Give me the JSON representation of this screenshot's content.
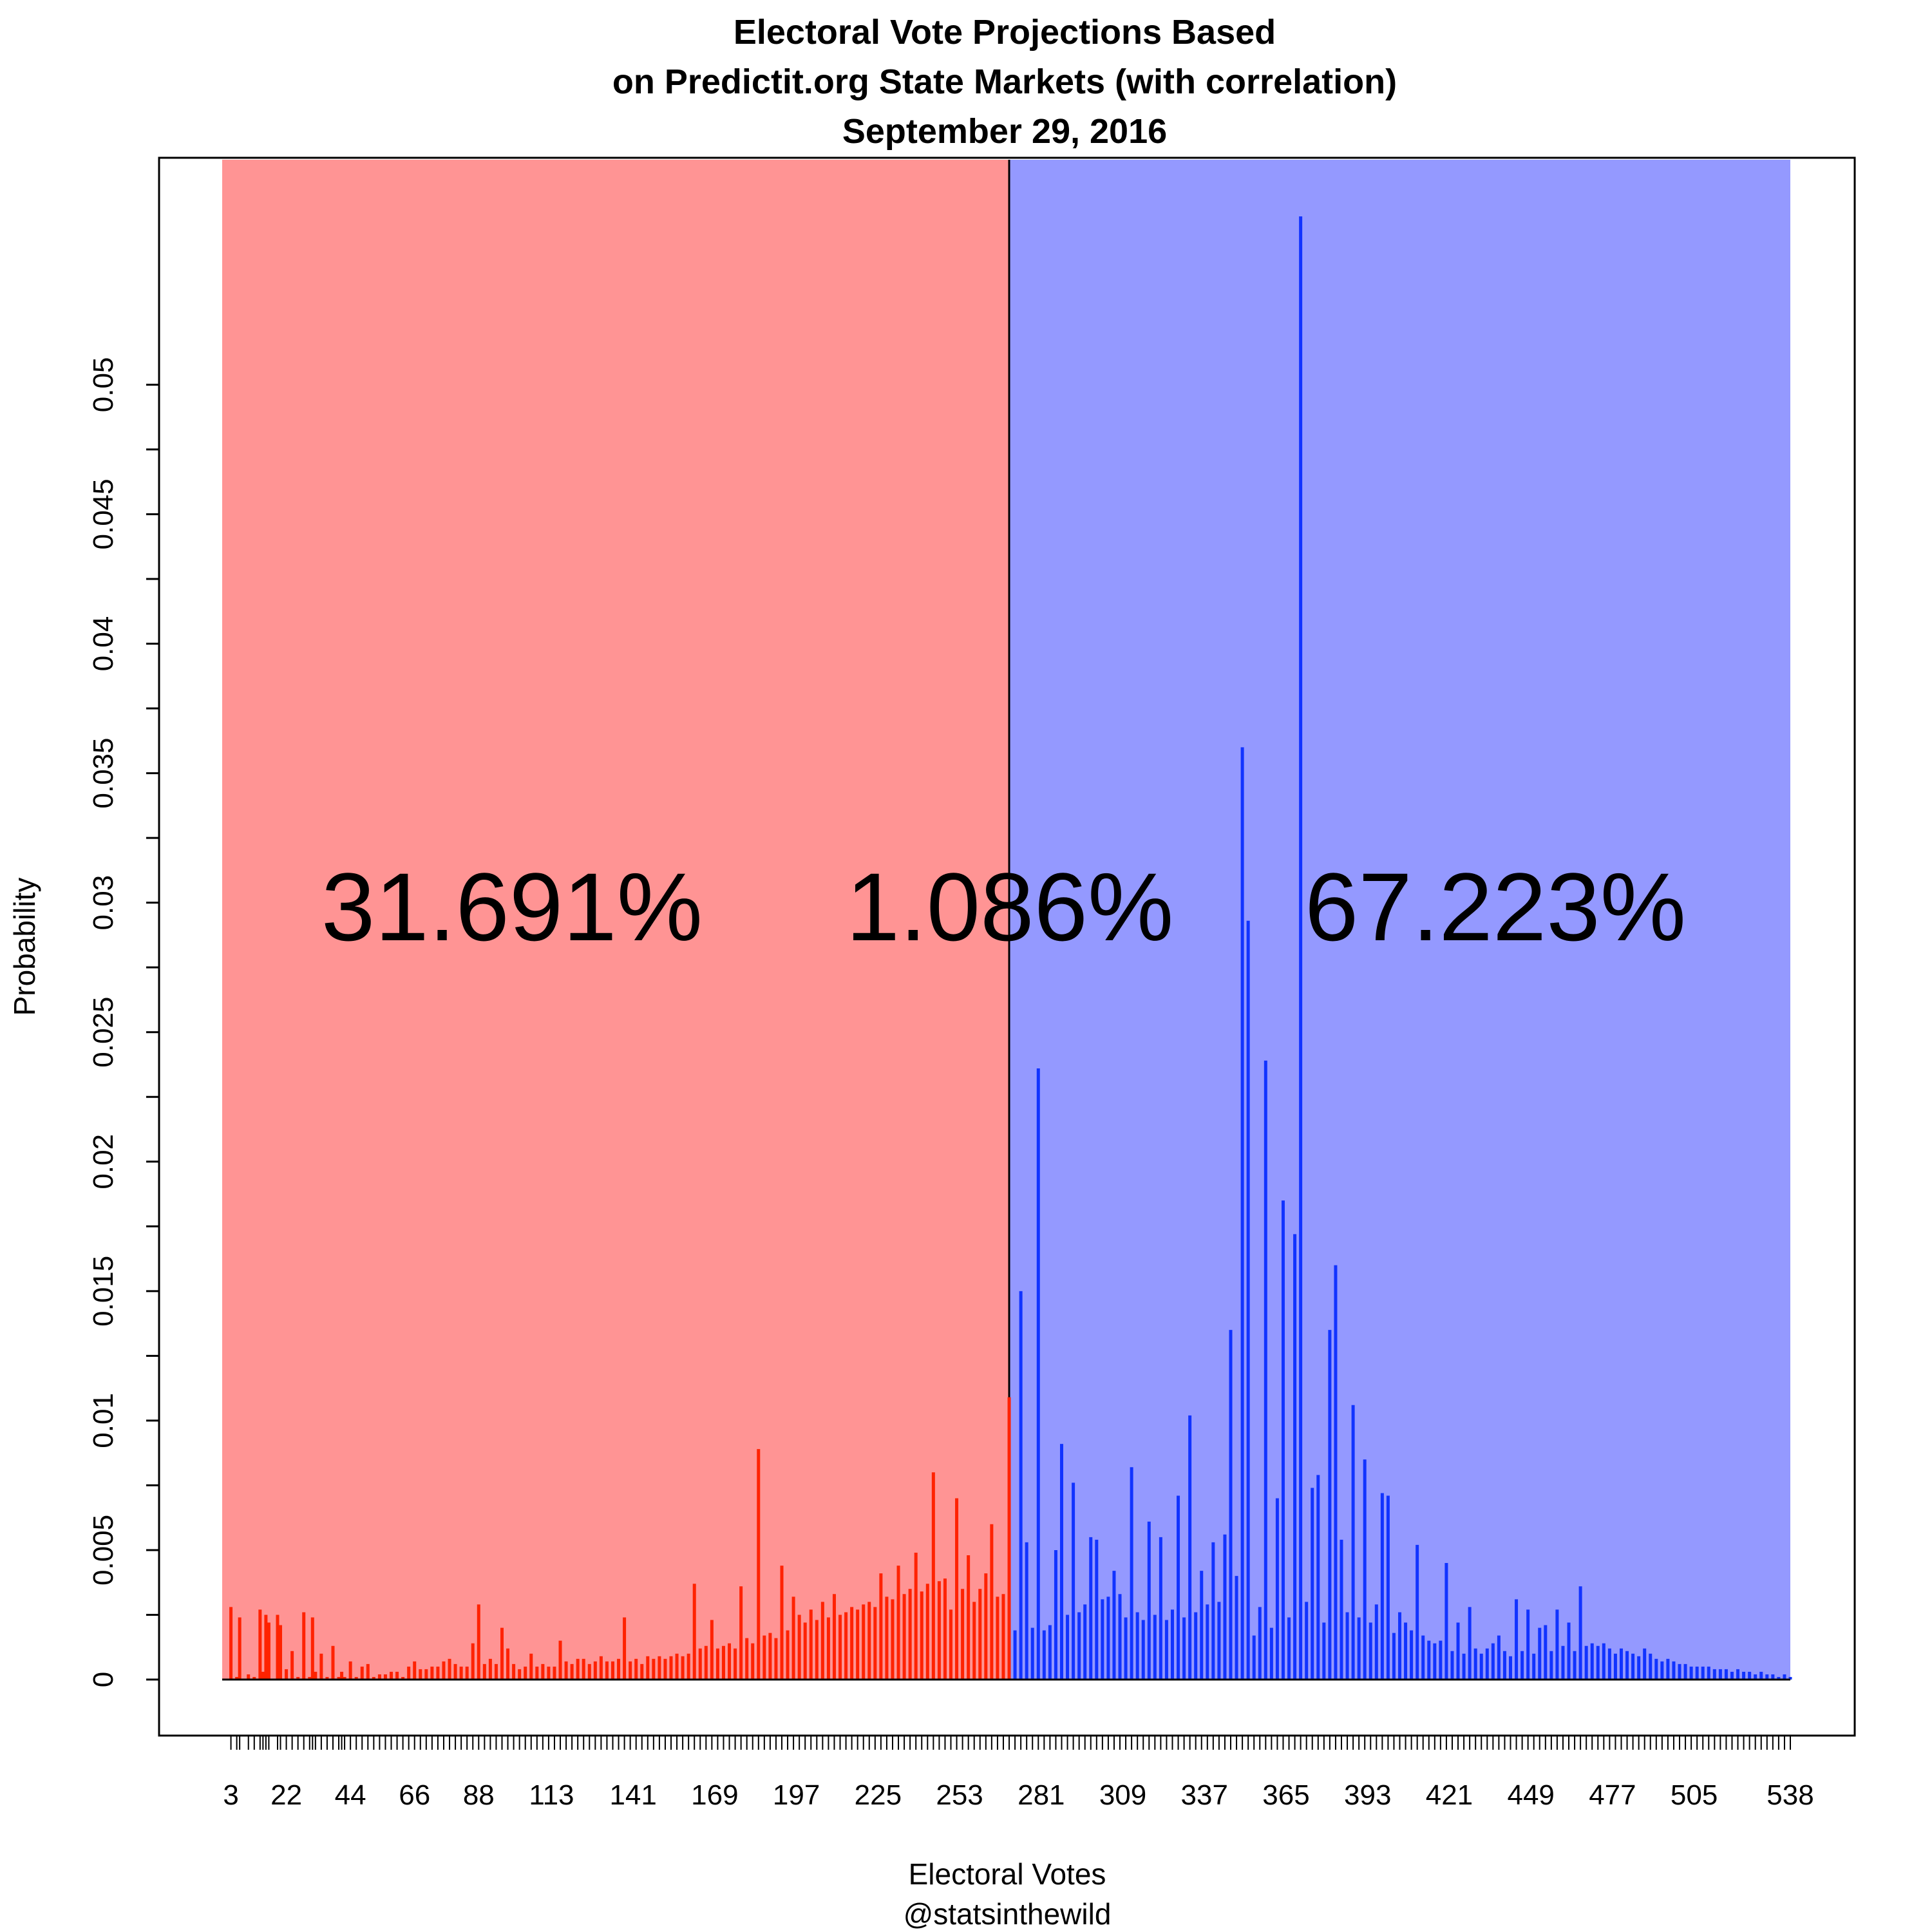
{
  "chart_data": {
    "type": "bar",
    "title_lines": [
      "Electoral Vote Projections Based",
      "on Predictit.org State Markets (with correlation)",
      "September 29, 2016"
    ],
    "xlabel": "Electoral Votes",
    "credit": "@statsinthewild",
    "ylabel": "Probability",
    "xlim": [
      0,
      538
    ],
    "ylim": [
      0,
      0.0565
    ],
    "x_tick_labels": [
      "3",
      "22",
      "44",
      "66",
      "88",
      "113",
      "141",
      "169",
      "197",
      "225",
      "253",
      "281",
      "309",
      "337",
      "365",
      "393",
      "421",
      "449",
      "477",
      "505",
      "538"
    ],
    "y_tick_labels": [
      "0",
      "0.005",
      "0.01",
      "0.015",
      "0.02",
      "0.025",
      "0.03",
      "0.035",
      "0.04",
      "0.045",
      "0.05"
    ],
    "grid": false,
    "legend": "none",
    "threshold": 270,
    "region_percentages": {
      "left": "31.691%",
      "middle": "1.086%",
      "right": "67.223%"
    },
    "colors": {
      "left_region": "#ff9494",
      "right_region": "#9499ff",
      "left_bars": "#ff2200",
      "right_bars": "#1133ff",
      "tie_bar": "#ff2200"
    },
    "x": [
      3,
      5,
      6,
      9,
      11,
      13,
      14,
      15,
      16,
      19,
      20,
      22,
      24,
      26,
      28,
      30,
      31,
      32,
      34,
      36,
      38,
      40,
      41,
      42,
      44,
      46,
      48,
      50,
      52,
      54,
      56,
      58,
      60,
      62,
      64,
      66,
      68,
      70,
      72,
      74,
      76,
      78,
      80,
      82,
      84,
      86,
      88,
      90,
      92,
      94,
      96,
      98,
      100,
      102,
      104,
      106,
      108,
      110,
      112,
      114,
      116,
      118,
      120,
      122,
      124,
      126,
      128,
      130,
      132,
      134,
      136,
      138,
      140,
      142,
      144,
      146,
      148,
      150,
      152,
      154,
      156,
      158,
      160,
      162,
      164,
      166,
      168,
      170,
      172,
      174,
      176,
      178,
      180,
      182,
      184,
      186,
      188,
      190,
      192,
      194,
      196,
      198,
      200,
      202,
      204,
      206,
      208,
      210,
      212,
      214,
      216,
      218,
      220,
      222,
      224,
      226,
      228,
      230,
      232,
      234,
      236,
      238,
      240,
      242,
      244,
      246,
      248,
      250,
      252,
      254,
      256,
      258,
      260,
      262,
      264,
      266,
      268,
      270,
      272,
      274,
      276,
      278,
      280,
      282,
      284,
      286,
      288,
      290,
      292,
      294,
      296,
      298,
      300,
      302,
      304,
      306,
      308,
      310,
      312,
      314,
      316,
      318,
      320,
      322,
      324,
      326,
      328,
      330,
      332,
      334,
      336,
      338,
      340,
      342,
      344,
      346,
      348,
      350,
      352,
      354,
      356,
      358,
      360,
      362,
      364,
      366,
      368,
      370,
      372,
      374,
      376,
      378,
      380,
      382,
      384,
      386,
      388,
      390,
      392,
      394,
      396,
      398,
      400,
      402,
      404,
      406,
      408,
      410,
      412,
      414,
      416,
      418,
      420,
      422,
      424,
      426,
      428,
      430,
      432,
      434,
      436,
      438,
      440,
      442,
      444,
      446,
      448,
      450,
      452,
      454,
      456,
      458,
      460,
      462,
      464,
      466,
      468,
      470,
      472,
      474,
      476,
      478,
      480,
      482,
      484,
      486,
      488,
      490,
      492,
      494,
      496,
      498,
      500,
      502,
      504,
      506,
      508,
      510,
      512,
      514,
      516,
      518,
      520,
      522,
      524,
      526,
      528,
      530,
      532,
      534,
      536,
      538
    ],
    "values": [
      0.0028,
      0.0001,
      0.0024,
      0.0002,
      0.0001,
      0.0027,
      0.0003,
      0.0025,
      0.0022,
      0.0025,
      0.0021,
      0.0004,
      0.0011,
      0.0001,
      0.0026,
      0.0001,
      0.0024,
      0.0003,
      0.001,
      0.0001,
      0.0013,
      0.0001,
      0.0003,
      0.0001,
      0.0007,
      0.0001,
      0.0005,
      0.0006,
      0.0001,
      0.0002,
      0.0002,
      0.0003,
      0.0003,
      0.0001,
      0.0005,
      0.0007,
      0.0004,
      0.0004,
      0.0005,
      0.0005,
      0.0007,
      0.0008,
      0.0006,
      0.0005,
      0.0005,
      0.0014,
      0.0029,
      0.0006,
      0.0008,
      0.0006,
      0.002,
      0.0012,
      0.0006,
      0.0004,
      0.0005,
      0.001,
      0.0005,
      0.0006,
      0.0005,
      0.0005,
      0.0015,
      0.0007,
      0.0006,
      0.0008,
      0.0008,
      0.0006,
      0.0007,
      0.0009,
      0.0007,
      0.0007,
      0.0008,
      0.0024,
      0.0007,
      0.0008,
      0.0006,
      0.0009,
      0.0008,
      0.0009,
      0.0008,
      0.0009,
      0.001,
      0.0009,
      0.001,
      0.0037,
      0.0012,
      0.0013,
      0.0023,
      0.0012,
      0.0013,
      0.0014,
      0.0012,
      0.0036,
      0.0016,
      0.0014,
      0.0089,
      0.0017,
      0.0018,
      0.0016,
      0.0044,
      0.0019,
      0.0032,
      0.0025,
      0.0022,
      0.0027,
      0.0023,
      0.003,
      0.0024,
      0.0033,
      0.0025,
      0.0026,
      0.0028,
      0.0027,
      0.0029,
      0.003,
      0.0028,
      0.0041,
      0.0032,
      0.0031,
      0.0044,
      0.0033,
      0.0035,
      0.0049,
      0.0034,
      0.0037,
      0.008,
      0.0038,
      0.0039,
      0.0027,
      0.007,
      0.0035,
      0.0048,
      0.003,
      0.0035,
      0.0041,
      0.006,
      0.0032,
      0.0033,
      0.0109,
      0.0019,
      0.015,
      0.0053,
      0.002,
      0.0236,
      0.0019,
      0.0021,
      0.005,
      0.0091,
      0.0025,
      0.0076,
      0.0026,
      0.0029,
      0.0055,
      0.0054,
      0.0031,
      0.0032,
      0.0042,
      0.0033,
      0.0024,
      0.0082,
      0.0026,
      0.0023,
      0.0061,
      0.0025,
      0.0055,
      0.0023,
      0.0027,
      0.0071,
      0.0024,
      0.0102,
      0.0026,
      0.0042,
      0.0029,
      0.0053,
      0.003,
      0.0056,
      0.0135,
      0.004,
      0.036,
      0.0293,
      0.0017,
      0.0028,
      0.0239,
      0.002,
      0.007,
      0.0185,
      0.0024,
      0.0172,
      0.0565,
      0.003,
      0.0074,
      0.0079,
      0.0022,
      0.0135,
      0.016,
      0.0054,
      0.0026,
      0.0106,
      0.0024,
      0.0085,
      0.0022,
      0.0029,
      0.0072,
      0.0071,
      0.0018,
      0.0026,
      0.0022,
      0.0019,
      0.0052,
      0.0017,
      0.0015,
      0.0014,
      0.0015,
      0.0045,
      0.0011,
      0.0022,
      0.001,
      0.0028,
      0.0012,
      0.001,
      0.0012,
      0.0014,
      0.0017,
      0.0011,
      0.0009,
      0.0031,
      0.0011,
      0.0027,
      0.001,
      0.002,
      0.0021,
      0.0011,
      0.0027,
      0.0013,
      0.0022,
      0.0011,
      0.0036,
      0.0013,
      0.0014,
      0.0013,
      0.0014,
      0.0012,
      0.001,
      0.0012,
      0.0011,
      0.001,
      0.0009,
      0.0012,
      0.001,
      0.0008,
      0.0007,
      0.0008,
      0.0007,
      0.0006,
      0.0006,
      0.0005,
      0.0005,
      0.0005,
      0.0005,
      0.0004,
      0.0004,
      0.0004,
      0.0003,
      0.0004,
      0.0003,
      0.0003,
      0.0002,
      0.0003,
      0.0002,
      0.0002,
      0.0001,
      0.0002,
      0.0001
    ]
  }
}
